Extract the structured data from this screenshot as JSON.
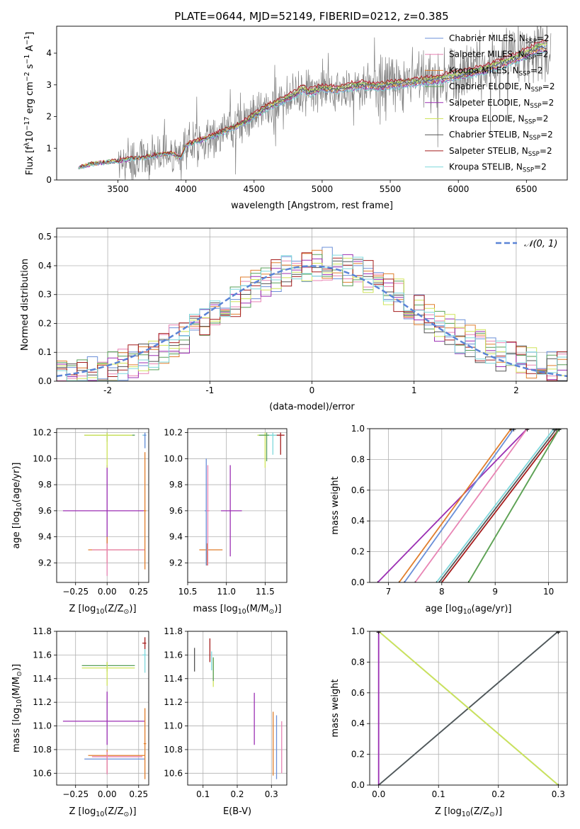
{
  "figure_title": "PLATE=0644, MJD=52149, FIBERID=0212, z=0.385",
  "colors": {
    "chabrier_miles": "#6a8fd8",
    "salpeter_miles": "#e884b4",
    "kroupa_miles": "#e07e2c",
    "chabrier_elodie": "#5aa05a",
    "salpeter_elodie": "#9b2fb3",
    "kroupa_elodie": "#cfe45a",
    "chabrier_stelib": "#555555",
    "salpeter_stelib": "#a51d1d",
    "kroupa_stelib": "#7fd8dc",
    "data": "#808080",
    "normal": "#5b84d6"
  },
  "chart_data": [
    {
      "id": "spectrum",
      "type": "line",
      "title": "PLATE=0644, MJD=52149, FIBERID=0212, z=0.385",
      "xlabel": "wavelength [Angstrom, rest frame]",
      "ylabel_parts": [
        "Flux [f",
        "λ",
        "10",
        "−17",
        " erg cm",
        "−2",
        " s",
        "−1",
        " A",
        "−1",
        "]"
      ],
      "xlim": [
        3050,
        6800
      ],
      "ylim": [
        0,
        4.85
      ],
      "xticks": [
        3500,
        4000,
        4500,
        5000,
        5500,
        6000,
        6500
      ],
      "yticks": [
        0,
        1,
        2,
        3,
        4
      ],
      "legend_loc": "right",
      "legend": [
        {
          "name": "Chabrier MILES, N",
          "sub": "SSP",
          "suffix": "=2",
          "color_key": "chabrier_miles"
        },
        {
          "name": "Salpeter MILES, N",
          "sub": "SSP",
          "suffix": "=2",
          "color_key": "salpeter_miles"
        },
        {
          "name": "Kroupa MILES, N",
          "sub": "SSP",
          "suffix": "=2",
          "color_key": "kroupa_miles"
        },
        {
          "name": "Chabrier ELODIE, N",
          "sub": "SSP",
          "suffix": "=2",
          "color_key": "chabrier_elodie"
        },
        {
          "name": "Salpeter ELODIE, N",
          "sub": "SSP",
          "suffix": "=2",
          "color_key": "salpeter_elodie"
        },
        {
          "name": "Kroupa ELODIE, N",
          "sub": "SSP",
          "suffix": "=2",
          "color_key": "kroupa_elodie"
        },
        {
          "name": "Chabrier STELIB, N",
          "sub": "SSP",
          "suffix": "=2",
          "color_key": "chabrier_stelib"
        },
        {
          "name": "Salpeter STELIB, N",
          "sub": "SSP",
          "suffix": "=2",
          "color_key": "salpeter_stelib"
        },
        {
          "name": "Kroupa STELIB, N",
          "sub": "SSP",
          "suffix": "=2",
          "color_key": "kroupa_stelib"
        }
      ],
      "model_continuum": [
        [
          3210,
          0.38
        ],
        [
          3300,
          0.5
        ],
        [
          3400,
          0.55
        ],
        [
          3500,
          0.6
        ],
        [
          3600,
          0.68
        ],
        [
          3700,
          0.72
        ],
        [
          3800,
          0.8
        ],
        [
          3900,
          0.85
        ],
        [
          3960,
          0.7
        ],
        [
          4000,
          1.1
        ],
        [
          4200,
          1.4
        ],
        [
          4400,
          1.75
        ],
        [
          4600,
          2.3
        ],
        [
          4800,
          2.7
        ],
        [
          4860,
          2.9
        ],
        [
          4900,
          2.75
        ],
        [
          5000,
          2.9
        ],
        [
          5100,
          2.85
        ],
        [
          5200,
          2.95
        ],
        [
          5300,
          3.0
        ],
        [
          5400,
          2.95
        ],
        [
          5600,
          3.05
        ],
        [
          5800,
          3.15
        ],
        [
          6000,
          3.3
        ],
        [
          6200,
          3.5
        ],
        [
          6400,
          3.8
        ],
        [
          6600,
          4.2
        ]
      ],
      "model_variants": [
        [
          1,
          1
        ],
        [
          1.03,
          1.5
        ],
        [
          0.98,
          2
        ],
        [
          1.02,
          2.5
        ],
        [
          0.97,
          3
        ],
        [
          1.01,
          3.5
        ],
        [
          1.0,
          4
        ],
        [
          1.04,
          4.5
        ],
        [
          0.96,
          5
        ]
      ],
      "data_range": [
        3500,
        6680
      ]
    },
    {
      "id": "residuals",
      "type": "line",
      "xlabel": "(data-model)/error",
      "ylabel": "Normed distribution",
      "xlim": [
        -2.5,
        2.5
      ],
      "ylim": [
        0,
        0.53
      ],
      "xticks": [
        -2,
        -1,
        0,
        1,
        2
      ],
      "yticks": [
        0,
        0.1,
        0.2,
        0.3,
        0.4,
        0.5
      ],
      "legend": [
        {
          "name": "𝒩(0, 1)",
          "color_key": "normal",
          "style": "dashed"
        }
      ],
      "legend_loc": "upper right",
      "bin_width": 0.1
    },
    {
      "id": "age_vs_Z",
      "type": "scatter",
      "xlabel": [
        "Z [log",
        "10",
        "(Z/Z",
        "⊙",
        ")]"
      ],
      "ylabel": [
        "age  [log",
        "10",
        "(age/yr)]"
      ],
      "xlim": [
        -0.4,
        0.33
      ],
      "ylim": [
        9.05,
        10.23
      ],
      "xticks": [
        -0.25,
        0,
        0.25
      ],
      "yticks": [
        9.2,
        9.4,
        9.6,
        9.8,
        10.0,
        10.2
      ],
      "xticklabels": [
        "−0.25",
        "0.00",
        "0.25"
      ],
      "points": [
        {
          "x": 0.0,
          "y": 9.6,
          "xerr": [
            0.35,
            0.3
          ],
          "yerr": [
            0.35,
            0.35
          ],
          "color_key": "salpeter_elodie"
        },
        {
          "x": 0.0,
          "y": 9.3,
          "xerr": [
            0.15,
            0.3
          ],
          "yerr": [
            0.1,
            0.1
          ],
          "color_key": "kroupa_miles"
        },
        {
          "x": 0.0,
          "y": 9.3,
          "xerr": [
            0.12,
            0.3
          ],
          "yerr": [
            0.2,
            0.05
          ],
          "color_key": "salpeter_miles"
        },
        {
          "x": 0.0,
          "y": 10.18,
          "xerr": [
            0.18,
            0.22
          ],
          "yerr": [
            0.05,
            0.02
          ],
          "color_key": "chabrier_elodie"
        },
        {
          "x": 0.0,
          "y": 10.18,
          "xerr": [
            0.18,
            0.2
          ],
          "yerr": [
            0.25,
            0.02
          ],
          "color_key": "kroupa_elodie"
        },
        {
          "x": 0.3,
          "y": 10.18,
          "xerr": [
            0.02,
            0.01
          ],
          "yerr": [
            0.1,
            0.02
          ],
          "color_key": "kroupa_stelib"
        },
        {
          "x": 0.3,
          "y": 10.18,
          "xerr": [
            0.01,
            0.01
          ],
          "yerr": [
            0.1,
            0.02
          ],
          "color_key": "chabrier_miles"
        },
        {
          "x": 0.3,
          "y": 9.6,
          "xerr": [
            0.01,
            0.01
          ],
          "yerr": [
            0.45,
            0.45
          ],
          "color_key": "kroupa_miles"
        }
      ]
    },
    {
      "id": "age_vs_mass",
      "type": "scatter",
      "xlabel": [
        "mass [log",
        "10",
        "(M/M",
        "⊙",
        ")]"
      ],
      "xlim": [
        10.5,
        11.78
      ],
      "ylim": [
        9.05,
        10.23
      ],
      "xticks": [
        10.5,
        11.0,
        11.5
      ],
      "yticks": [
        9.2,
        9.4,
        9.6,
        9.8,
        10.0,
        10.2
      ],
      "xticklabels": [
        "10.5",
        "11.0",
        "11.5"
      ],
      "points": [
        {
          "x": 10.75,
          "y": 9.3,
          "xerr": [
            0.1,
            0.2
          ],
          "yerr": [
            0.12,
            0.05
          ],
          "color_key": "kroupa_miles"
        },
        {
          "x": 10.74,
          "y": 9.6,
          "xerr": [
            0.02,
            0.02
          ],
          "yerr": [
            0.42,
            0.4
          ],
          "color_key": "chabrier_miles"
        },
        {
          "x": 10.76,
          "y": 9.6,
          "xerr": [
            0.02,
            0.02
          ],
          "yerr": [
            0.42,
            0.35
          ],
          "color_key": "salpeter_miles"
        },
        {
          "x": 11.05,
          "y": 9.6,
          "xerr": [
            0.12,
            0.15
          ],
          "yerr": [
            0.35,
            0.35
          ],
          "color_key": "salpeter_elodie"
        },
        {
          "x": 11.5,
          "y": 10.18,
          "xerr": [
            0.1,
            0.15
          ],
          "yerr": [
            0.25,
            0.02
          ],
          "color_key": "kroupa_elodie"
        },
        {
          "x": 11.52,
          "y": 10.18,
          "xerr": [
            0.1,
            0.1
          ],
          "yerr": [
            0.2,
            0.02
          ],
          "color_key": "chabrier_elodie"
        },
        {
          "x": 11.6,
          "y": 10.18,
          "xerr": [
            0.05,
            0.1
          ],
          "yerr": [
            0.15,
            0.02
          ],
          "color_key": "kroupa_stelib"
        },
        {
          "x": 11.7,
          "y": 10.18,
          "xerr": [
            0.05,
            0.05
          ],
          "yerr": [
            0.15,
            0.02
          ],
          "color_key": "salpeter_stelib"
        }
      ]
    },
    {
      "id": "mass_weight_vs_age",
      "type": "line",
      "xlabel": [
        "age  [log",
        "10",
        "(age/yr)]"
      ],
      "ylabel": "mass weight",
      "xlim": [
        6.65,
        10.35
      ],
      "ylim": [
        0,
        1
      ],
      "xticks": [
        7,
        8,
        9,
        10
      ],
      "yticks": [
        0,
        0.2,
        0.4,
        0.6,
        0.8,
        1.0
      ],
      "lines": [
        {
          "x": [
            6.8,
            9.6
          ],
          "y": [
            0,
            1
          ],
          "color_key": "salpeter_elodie"
        },
        {
          "x": 7.2,
          "x2": 9.3,
          "y": [
            0,
            1
          ],
          "color_key": "kroupa_miles"
        },
        {
          "x": [
            7.3,
            9.35
          ],
          "y": [
            0,
            1
          ],
          "color_key": "chabrier_miles"
        },
        {
          "x": [
            7.5,
            9.6
          ],
          "y": [
            0,
            1
          ],
          "color_key": "salpeter_miles"
        },
        {
          "x": [
            7.9,
            10.1
          ],
          "y": [
            0,
            1
          ],
          "color_key": "kroupa_stelib"
        },
        {
          "x": [
            8.0,
            10.2
          ],
          "y": [
            0,
            1
          ],
          "color_key": "salpeter_stelib"
        },
        {
          "x": [
            7.95,
            10.15
          ],
          "y": [
            0,
            1
          ],
          "color_key": "chabrier_stelib"
        },
        {
          "x": [
            8.5,
            10.2
          ],
          "y": [
            0,
            1
          ],
          "color_key": "kroupa_elodie"
        },
        {
          "x": [
            8.5,
            10.2
          ],
          "y": [
            0,
            1
          ],
          "color_key": "chabrier_elodie"
        }
      ]
    },
    {
      "id": "mass_vs_Z",
      "type": "scatter",
      "xlabel": [
        "Z [log",
        "10",
        "(Z/Z",
        "⊙",
        ")]"
      ],
      "ylabel": [
        "mass [log",
        "10",
        "(M/M",
        "⊙",
        ")]"
      ],
      "xlim": [
        -0.4,
        0.33
      ],
      "ylim": [
        10.5,
        11.8
      ],
      "xticks": [
        -0.25,
        0,
        0.25
      ],
      "yticks": [
        10.6,
        10.8,
        11.0,
        11.2,
        11.4,
        11.6,
        11.8
      ],
      "xticklabels": [
        "−0.25",
        "0.00",
        "0.25"
      ],
      "points": [
        {
          "x": 0.0,
          "y": 11.04,
          "xerr": [
            0.35,
            0.3
          ],
          "yerr": [
            0.2,
            0.25
          ],
          "color_key": "salpeter_elodie"
        },
        {
          "x": 0.0,
          "y": 10.72,
          "xerr": [
            0.18,
            0.3
          ],
          "yerr": [
            0.12,
            0.05
          ],
          "color_key": "chabrier_miles"
        },
        {
          "x": 0.0,
          "y": 10.75,
          "xerr": [
            0.15,
            0.3
          ],
          "yerr": [
            0.15,
            0.05
          ],
          "color_key": "kroupa_miles"
        },
        {
          "x": 0.0,
          "y": 10.74,
          "xerr": [
            0.12,
            0.28
          ],
          "yerr": [
            0.15,
            0.04
          ],
          "color_key": "salpeter_miles"
        },
        {
          "x": 0.0,
          "y": 11.51,
          "xerr": [
            0.2,
            0.22
          ],
          "yerr": [
            0.05,
            0.03
          ],
          "color_key": "chabrier_elodie"
        },
        {
          "x": 0.0,
          "y": 11.49,
          "xerr": [
            0.2,
            0.22
          ],
          "yerr": [
            0.15,
            0.05
          ],
          "color_key": "kroupa_elodie"
        },
        {
          "x": 0.3,
          "y": 11.6,
          "xerr": [
            0.02,
            0.01
          ],
          "yerr": [
            0.15,
            0.05
          ],
          "color_key": "kroupa_stelib"
        },
        {
          "x": 0.3,
          "y": 11.7,
          "xerr": [
            0.02,
            0.01
          ],
          "yerr": [
            0.05,
            0.05
          ],
          "color_key": "salpeter_stelib"
        },
        {
          "x": 0.3,
          "y": 10.85,
          "xerr": [
            0.01,
            0.01
          ],
          "yerr": [
            0.3,
            0.3
          ],
          "color_key": "kroupa_miles"
        }
      ]
    },
    {
      "id": "mass_vs_ebv",
      "type": "scatter",
      "xlabel": "E(B-V)",
      "xlim": [
        0.055,
        0.345
      ],
      "ylim": [
        10.5,
        11.8
      ],
      "xticks": [
        0.1,
        0.2,
        0.3
      ],
      "yticks": [
        10.6,
        10.8,
        11.0,
        11.2,
        11.4,
        11.6,
        11.8
      ],
      "xticklabels": [
        "0.1",
        "0.2",
        "0.3"
      ],
      "points": [
        {
          "x": 0.075,
          "y": 11.56,
          "yerr": [
            0.1,
            0.1
          ],
          "color_key": "chabrier_stelib"
        },
        {
          "x": 0.12,
          "y": 11.64,
          "yerr": [
            0.1,
            0.1
          ],
          "color_key": "salpeter_stelib"
        },
        {
          "x": 0.125,
          "y": 11.55,
          "yerr": [
            0.08,
            0.08
          ],
          "color_key": "kroupa_stelib"
        },
        {
          "x": 0.13,
          "y": 11.45,
          "yerr": [
            0.12,
            0.12
          ],
          "color_key": "kroupa_elodie"
        },
        {
          "x": 0.13,
          "y": 11.48,
          "yerr": [
            0.1,
            0.1
          ],
          "color_key": "chabrier_elodie"
        },
        {
          "x": 0.25,
          "y": 11.06,
          "yerr": [
            0.22,
            0.22
          ],
          "color_key": "salpeter_elodie"
        },
        {
          "x": 0.305,
          "y": 10.85,
          "yerr": [
            0.27,
            0.27
          ],
          "color_key": "kroupa_miles"
        },
        {
          "x": 0.315,
          "y": 10.82,
          "yerr": [
            0.27,
            0.27
          ],
          "color_key": "chabrier_miles"
        },
        {
          "x": 0.33,
          "y": 10.82,
          "yerr": [
            0.22,
            0.22
          ],
          "color_key": "salpeter_miles"
        }
      ]
    },
    {
      "id": "mass_weight_vs_Z",
      "type": "line",
      "xlabel": [
        "Z [log",
        "10",
        "(Z/Z",
        "⊙",
        ")]"
      ],
      "ylabel": "mass weight",
      "xlim": [
        -0.015,
        0.315
      ],
      "ylim": [
        0,
        1
      ],
      "xticks": [
        0,
        0.1,
        0.2,
        0.3
      ],
      "yticks": [
        0,
        0.2,
        0.4,
        0.6,
        0.8,
        1.0
      ],
      "xticklabels": [
        "0.0",
        "0.1",
        "0.2",
        "0.3"
      ],
      "lines": [
        {
          "x": [
            0,
            0.3
          ],
          "y": [
            0,
            1
          ],
          "color_key": "chabrier_miles"
        },
        {
          "x": [
            0,
            0.3
          ],
          "y": [
            0,
            1
          ],
          "color_key": "kroupa_stelib"
        },
        {
          "x": [
            0,
            0.3
          ],
          "y": [
            0,
            1
          ],
          "color_key": "chabrier_stelib"
        },
        {
          "x": [
            0,
            0.3
          ],
          "y": [
            1,
            0
          ],
          "color_key": "chabrier_elodie"
        },
        {
          "x": [
            0,
            0.3
          ],
          "y": [
            1,
            0
          ],
          "color_key": "kroupa_elodie"
        },
        {
          "x": [
            0,
            0
          ],
          "y": [
            0,
            1
          ],
          "color_key": "salpeter_elodie"
        }
      ]
    }
  ]
}
